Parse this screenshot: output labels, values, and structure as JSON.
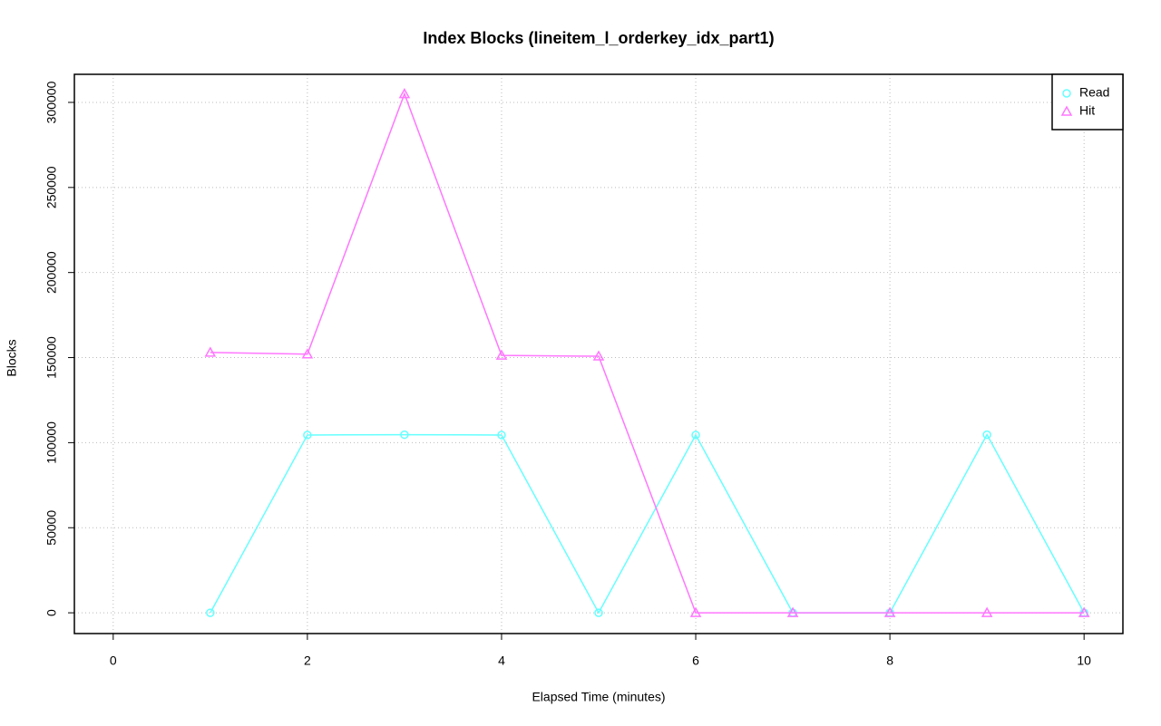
{
  "chart_data": {
    "type": "line",
    "title": "Index Blocks (lineitem_l_orderkey_idx_part1)",
    "xlabel": "Elapsed Time (minutes)",
    "ylabel": "Blocks",
    "x": [
      1,
      2,
      3,
      4,
      5,
      6,
      7,
      8,
      9,
      10
    ],
    "series": [
      {
        "name": "Read",
        "color": "#66ffff",
        "marker": "circle",
        "values": [
          0,
          104500,
          104700,
          104500,
          0,
          104500,
          0,
          0,
          104700,
          0
        ]
      },
      {
        "name": "Hit",
        "color": "#ff77ff",
        "marker": "triangle",
        "values": [
          153000,
          152000,
          305000,
          151300,
          150800,
          0,
          0,
          0,
          0,
          0
        ]
      }
    ],
    "xlim": [
      -0.4,
      10.4
    ],
    "xticks": [
      0,
      2,
      4,
      6,
      8,
      10
    ],
    "ylim": [
      -12200,
      316500
    ],
    "yticks": [
      0,
      50000,
      100000,
      150000,
      200000,
      250000,
      300000
    ],
    "grid": true,
    "legend": "top-right"
  }
}
